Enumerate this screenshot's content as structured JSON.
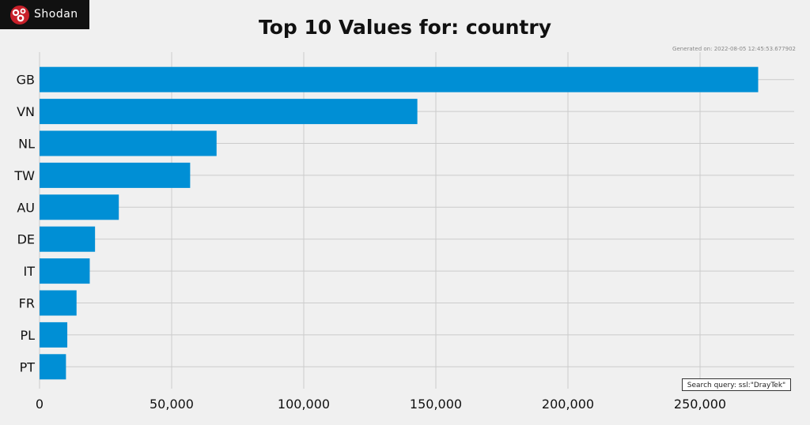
{
  "brand": {
    "name": "Shodan",
    "logo_icon": "shodan-logo-icon"
  },
  "generated": "Generated on: 2022-08-05 12:45:53.677902",
  "search_query": "Search query: ssl:\"DrayTek\"",
  "chart_data": {
    "type": "bar",
    "orientation": "horizontal",
    "title": "Top 10 Values for: country",
    "categories": [
      "GB",
      "VN",
      "NL",
      "TW",
      "AU",
      "DE",
      "IT",
      "FR",
      "PL",
      "PT"
    ],
    "values": [
      272000,
      143000,
      67000,
      57000,
      30000,
      21000,
      19000,
      14000,
      10500,
      10000
    ],
    "xlim": [
      0,
      285000
    ],
    "xticks": [
      0,
      50000,
      100000,
      150000,
      200000,
      250000
    ],
    "xtick_labels": [
      "0",
      "50,000",
      "100,000",
      "150,000",
      "200,000",
      "250,000"
    ],
    "bar_color": "#008fd5",
    "grid": true
  }
}
